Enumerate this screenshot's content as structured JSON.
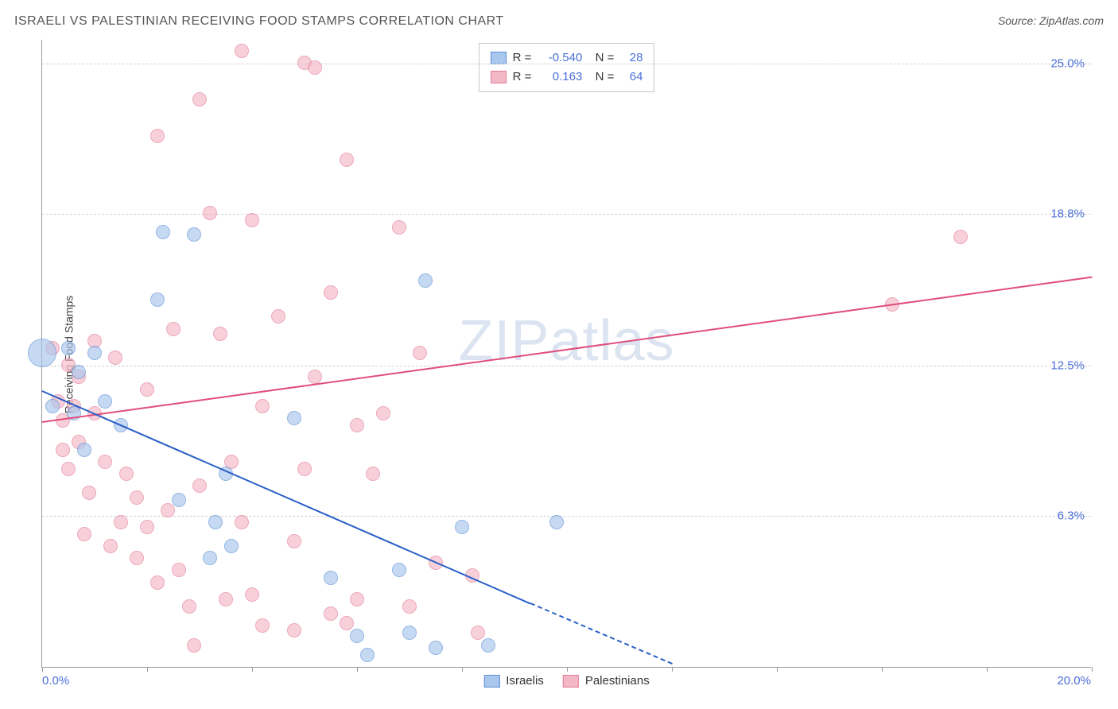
{
  "title": "ISRAELI VS PALESTINIAN RECEIVING FOOD STAMPS CORRELATION CHART",
  "source": "Source: ZipAtlas.com",
  "watermark_prefix": "ZIP",
  "watermark_suffix": "atlas",
  "chart": {
    "type": "scatter",
    "ylabel": "Receiving Food Stamps",
    "xlim": [
      0,
      20
    ],
    "ylim": [
      0,
      26
    ],
    "x_axis_labels": {
      "left": "0.0%",
      "right": "20.0%"
    },
    "y_ticks": [
      {
        "v": 6.3,
        "label": "6.3%"
      },
      {
        "v": 12.5,
        "label": "12.5%"
      },
      {
        "v": 18.8,
        "label": "18.8%"
      },
      {
        "v": 25.0,
        "label": "25.0%"
      }
    ],
    "x_tick_positions": [
      0,
      2,
      4,
      6,
      8,
      10,
      12,
      14,
      16,
      18,
      20
    ],
    "background_color": "#ffffff",
    "grid_color": "#d0d0d0",
    "axis_color": "#999999",
    "tick_label_color": "#4a6fd8",
    "point_radius": 9,
    "point_opacity": 0.65,
    "series": {
      "israelis": {
        "label": "Israelis",
        "fill": "#a9c6ec",
        "stroke": "#5b8fd6",
        "trend_color": "#2a5fc7",
        "R": "-0.540",
        "N": "28",
        "trend": {
          "x1": 0,
          "y1": 11.5,
          "x2": 12.0,
          "y2": 0.2,
          "dashed_extend_to_x": 12.0
        },
        "points": [
          {
            "x": 0.0,
            "y": 13.0,
            "r": 18
          },
          {
            "x": 0.2,
            "y": 10.8
          },
          {
            "x": 0.5,
            "y": 13.2
          },
          {
            "x": 0.6,
            "y": 10.5
          },
          {
            "x": 0.7,
            "y": 12.2
          },
          {
            "x": 0.8,
            "y": 9.0
          },
          {
            "x": 1.0,
            "y": 13.0
          },
          {
            "x": 1.2,
            "y": 11.0
          },
          {
            "x": 1.5,
            "y": 10.0
          },
          {
            "x": 2.2,
            "y": 15.2
          },
          {
            "x": 2.3,
            "y": 18.0
          },
          {
            "x": 2.9,
            "y": 17.9
          },
          {
            "x": 2.6,
            "y": 6.9
          },
          {
            "x": 3.2,
            "y": 4.5
          },
          {
            "x": 3.3,
            "y": 6.0
          },
          {
            "x": 3.5,
            "y": 8.0
          },
          {
            "x": 3.6,
            "y": 5.0
          },
          {
            "x": 4.8,
            "y": 10.3
          },
          {
            "x": 5.5,
            "y": 3.7
          },
          {
            "x": 6.0,
            "y": 1.3
          },
          {
            "x": 6.2,
            "y": 0.5
          },
          {
            "x": 6.8,
            "y": 4.0
          },
          {
            "x": 7.0,
            "y": 1.4
          },
          {
            "x": 7.3,
            "y": 16.0
          },
          {
            "x": 7.5,
            "y": 0.8
          },
          {
            "x": 8.0,
            "y": 5.8
          },
          {
            "x": 8.5,
            "y": 0.9
          },
          {
            "x": 9.8,
            "y": 6.0
          }
        ]
      },
      "palestinians": {
        "label": "Palestinians",
        "fill": "#f3b8c6",
        "stroke": "#e37a9a",
        "trend_color": "#e04d7d",
        "R": "0.163",
        "N": "64",
        "trend": {
          "x1": 0,
          "y1": 10.2,
          "x2": 20.0,
          "y2": 16.2
        },
        "points": [
          {
            "x": 0.2,
            "y": 13.2
          },
          {
            "x": 0.3,
            "y": 11.0
          },
          {
            "x": 0.4,
            "y": 10.2
          },
          {
            "x": 0.4,
            "y": 9.0
          },
          {
            "x": 0.5,
            "y": 12.5
          },
          {
            "x": 0.5,
            "y": 8.2
          },
          {
            "x": 0.6,
            "y": 10.8
          },
          {
            "x": 0.7,
            "y": 12.0
          },
          {
            "x": 0.7,
            "y": 9.3
          },
          {
            "x": 0.8,
            "y": 5.5
          },
          {
            "x": 0.9,
            "y": 7.2
          },
          {
            "x": 1.0,
            "y": 10.5
          },
          {
            "x": 1.0,
            "y": 13.5
          },
          {
            "x": 1.2,
            "y": 8.5
          },
          {
            "x": 1.3,
            "y": 5.0
          },
          {
            "x": 1.4,
            "y": 12.8
          },
          {
            "x": 1.5,
            "y": 6.0
          },
          {
            "x": 1.6,
            "y": 8.0
          },
          {
            "x": 1.8,
            "y": 4.5
          },
          {
            "x": 1.8,
            "y": 7.0
          },
          {
            "x": 2.0,
            "y": 11.5
          },
          {
            "x": 2.0,
            "y": 5.8
          },
          {
            "x": 2.2,
            "y": 22.0
          },
          {
            "x": 2.2,
            "y": 3.5
          },
          {
            "x": 2.4,
            "y": 6.5
          },
          {
            "x": 2.5,
            "y": 14.0
          },
          {
            "x": 2.6,
            "y": 4.0
          },
          {
            "x": 2.8,
            "y": 2.5
          },
          {
            "x": 2.9,
            "y": 0.9
          },
          {
            "x": 3.0,
            "y": 23.5
          },
          {
            "x": 3.0,
            "y": 7.5
          },
          {
            "x": 3.2,
            "y": 18.8
          },
          {
            "x": 3.4,
            "y": 13.8
          },
          {
            "x": 3.5,
            "y": 2.8
          },
          {
            "x": 3.6,
            "y": 8.5
          },
          {
            "x": 3.8,
            "y": 25.5
          },
          {
            "x": 3.8,
            "y": 6.0
          },
          {
            "x": 4.0,
            "y": 18.5
          },
          {
            "x": 4.0,
            "y": 3.0
          },
          {
            "x": 4.2,
            "y": 10.8
          },
          {
            "x": 4.2,
            "y": 1.7
          },
          {
            "x": 4.5,
            "y": 14.5
          },
          {
            "x": 4.8,
            "y": 5.2
          },
          {
            "x": 4.8,
            "y": 1.5
          },
          {
            "x": 5.0,
            "y": 25.0
          },
          {
            "x": 5.0,
            "y": 8.2
          },
          {
            "x": 5.2,
            "y": 24.8
          },
          {
            "x": 5.2,
            "y": 12.0
          },
          {
            "x": 5.5,
            "y": 2.2
          },
          {
            "x": 5.5,
            "y": 15.5
          },
          {
            "x": 5.8,
            "y": 21.0
          },
          {
            "x": 5.8,
            "y": 1.8
          },
          {
            "x": 6.0,
            "y": 10.0
          },
          {
            "x": 6.0,
            "y": 2.8
          },
          {
            "x": 6.3,
            "y": 8.0
          },
          {
            "x": 6.5,
            "y": 10.5
          },
          {
            "x": 6.8,
            "y": 18.2
          },
          {
            "x": 7.0,
            "y": 2.5
          },
          {
            "x": 7.2,
            "y": 13.0
          },
          {
            "x": 7.5,
            "y": 4.3
          },
          {
            "x": 8.2,
            "y": 3.8
          },
          {
            "x": 8.3,
            "y": 1.4
          },
          {
            "x": 16.2,
            "y": 15.0
          },
          {
            "x": 17.5,
            "y": 17.8
          }
        ]
      }
    }
  }
}
